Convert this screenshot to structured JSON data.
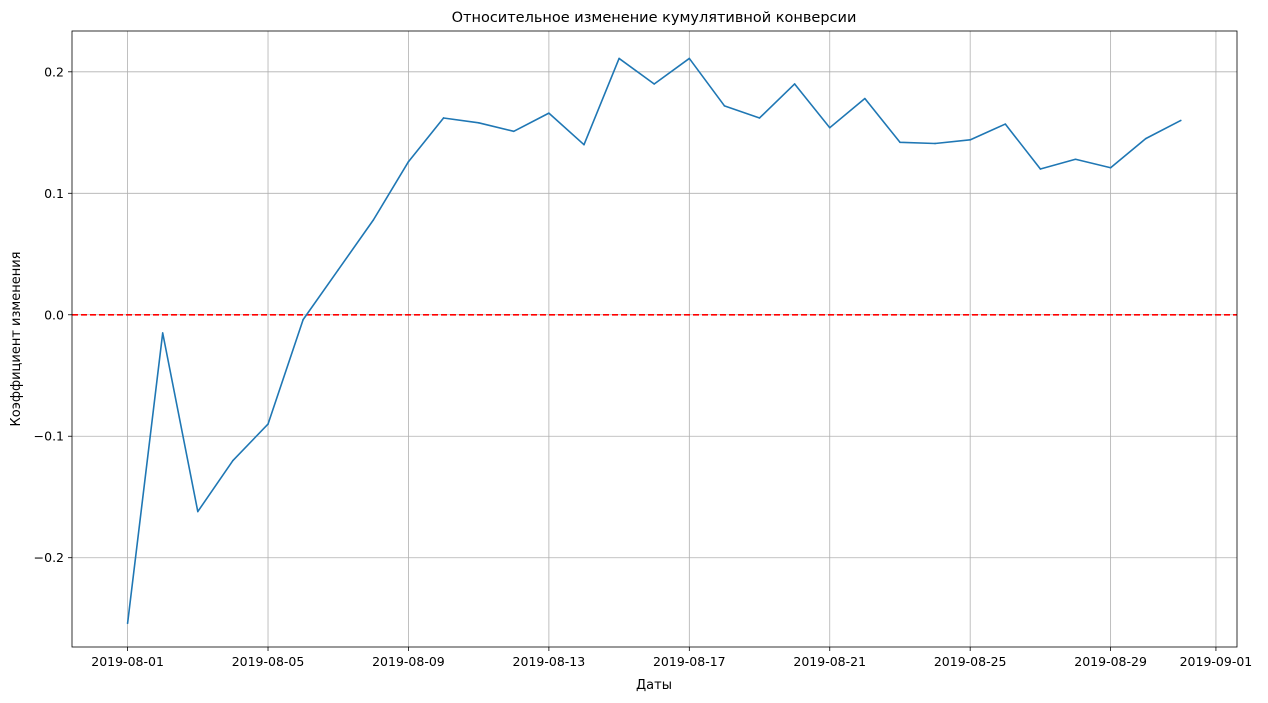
{
  "chart_data": {
    "type": "line",
    "title": "Относительное изменение кумулятивной конверсии",
    "xlabel": "Даты",
    "ylabel": "Коэффициент изменения",
    "x": [
      "2019-08-01",
      "2019-08-02",
      "2019-08-03",
      "2019-08-04",
      "2019-08-05",
      "2019-08-06",
      "2019-08-07",
      "2019-08-08",
      "2019-08-09",
      "2019-08-10",
      "2019-08-11",
      "2019-08-12",
      "2019-08-13",
      "2019-08-14",
      "2019-08-15",
      "2019-08-16",
      "2019-08-17",
      "2019-08-18",
      "2019-08-19",
      "2019-08-20",
      "2019-08-21",
      "2019-08-22",
      "2019-08-23",
      "2019-08-24",
      "2019-08-25",
      "2019-08-26",
      "2019-08-27",
      "2019-08-28",
      "2019-08-29",
      "2019-08-30",
      "2019-08-31"
    ],
    "series": [
      {
        "values": [
          -0.254,
          -0.015,
          -0.162,
          -0.12,
          -0.09,
          -0.004,
          0.037,
          0.078,
          0.126,
          0.162,
          0.158,
          0.151,
          0.166,
          0.14,
          0.211,
          0.19,
          0.211,
          0.172,
          0.162,
          0.19,
          0.154,
          0.178,
          0.142,
          0.141,
          0.144,
          0.157,
          0.12,
          0.128,
          0.121,
          0.145,
          0.16
        ],
        "color": "#1f77b4"
      }
    ],
    "reference_line": {
      "y": 0,
      "color": "#ff0000",
      "style": "dashed"
    },
    "xticks": [
      "2019-08-01",
      "2019-08-05",
      "2019-08-09",
      "2019-08-13",
      "2019-08-17",
      "2019-08-21",
      "2019-08-25",
      "2019-08-29",
      "2019-09-01"
    ],
    "yticks": [
      -0.2,
      -0.1,
      0.0,
      0.1,
      0.2
    ],
    "ytick_labels": [
      "−0.2",
      "−0.1",
      "0.0",
      "0.1",
      "0.2"
    ],
    "xlim": [
      "2019-07-30T10:00",
      "2019-09-01T14:24"
    ],
    "ylim": [
      -0.2735,
      0.2336
    ],
    "grid": true,
    "grid_color": "#b0b0b0"
  }
}
